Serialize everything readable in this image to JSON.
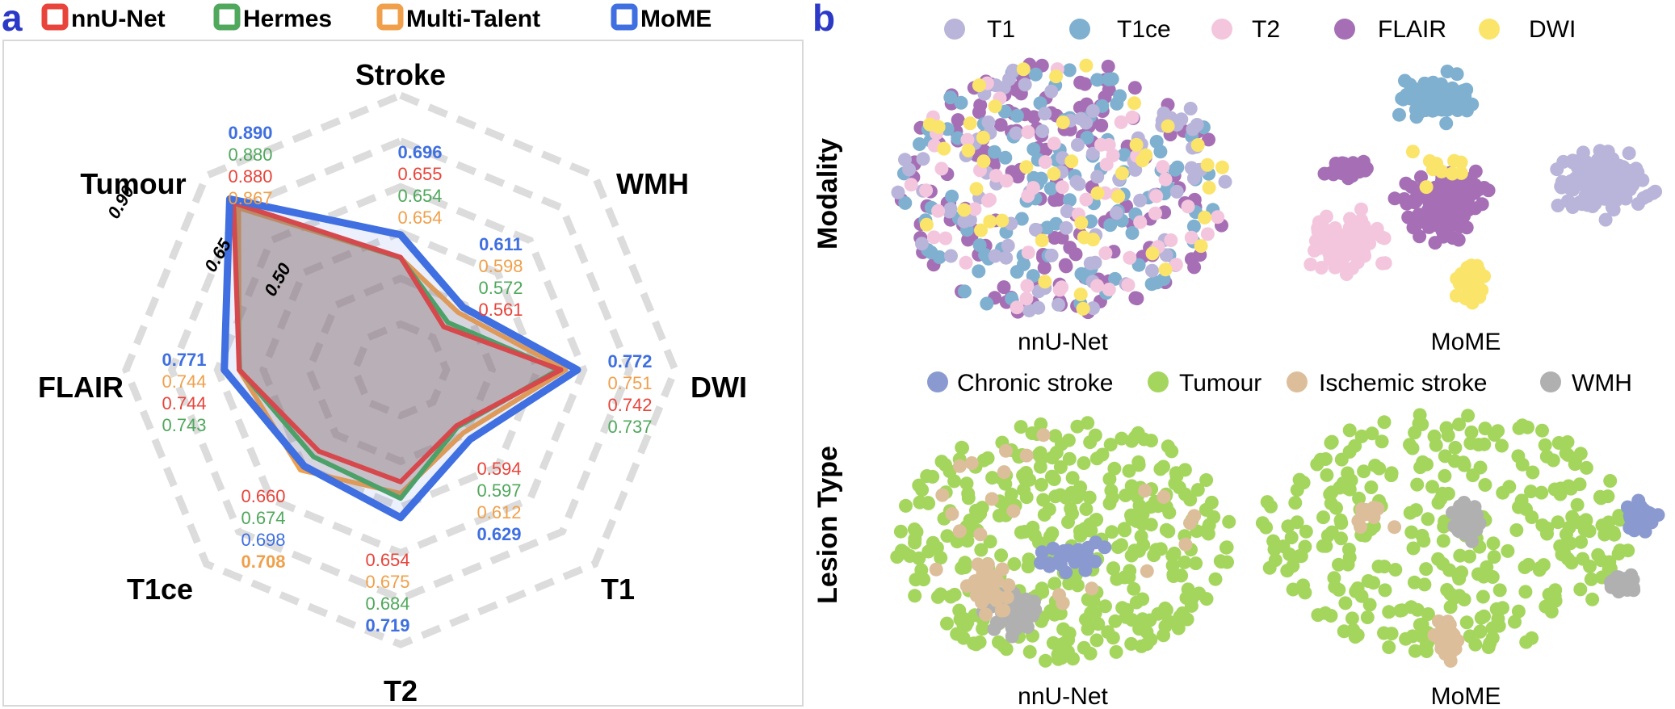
{
  "panels": {
    "a": "a",
    "b": "b"
  },
  "colors": {
    "nnunet": "#e8443b",
    "hermes": "#4fa85c",
    "multitalent": "#f0a04b",
    "mome": "#3f6fe0",
    "panel_label": "#2c39c7",
    "grid": "#dcdcdc",
    "T1": "#b9b4d9",
    "T1ce": "#7fb0d0",
    "T2": "#f3c6de",
    "FLAIR": "#a66fb5",
    "DWI": "#fbe46a",
    "chronic": "#8a9ad0",
    "tumour": "#a4d65e",
    "ischemic": "#dcbf9a",
    "wmh": "#b0b0b0"
  },
  "chart_data": [
    {
      "type": "radar",
      "panel": "a",
      "legend": [
        "nnU-Net",
        "Hermes",
        "Multi-Talent",
        "MoME"
      ],
      "legend_position": "top",
      "axes": [
        "Stroke",
        "WMH",
        "DWI",
        "T1",
        "T2",
        "T1ce",
        "FLAIR",
        "Tumour"
      ],
      "radial_ticks": [
        "0.50",
        "0.65",
        "0.90"
      ],
      "radial_tick_values": [
        0.5,
        0.65,
        0.9
      ],
      "series": [
        {
          "name": "nnU-Net",
          "values": [
            0.655,
            0.561,
            0.742,
            0.594,
            0.654,
            0.66,
            0.744,
            0.88
          ]
        },
        {
          "name": "Hermes",
          "values": [
            0.654,
            0.572,
            0.737,
            0.597,
            0.684,
            0.674,
            0.743,
            0.88
          ]
        },
        {
          "name": "Multi-Talent",
          "values": [
            0.654,
            0.598,
            0.751,
            0.612,
            0.675,
            0.708,
            0.744,
            0.867
          ]
        },
        {
          "name": "MoME",
          "values": [
            0.696,
            0.611,
            0.772,
            0.629,
            0.719,
            0.698,
            0.771,
            0.89
          ]
        }
      ],
      "value_labels": {
        "Stroke": [
          "0.696",
          "0.655",
          "0.654",
          "0.654"
        ],
        "WMH": [
          "0.611",
          "0.598",
          "0.572",
          "0.561"
        ],
        "DWI": [
          "0.772",
          "0.751",
          "0.742",
          "0.737"
        ],
        "T1": [
          "0.594",
          "0.597",
          "0.612",
          "0.629"
        ],
        "T2": [
          "0.654",
          "0.675",
          "0.684",
          "0.719"
        ],
        "T1ce": [
          "0.660",
          "0.674",
          "0.698",
          "0.708"
        ],
        "FLAIR": [
          "0.771",
          "0.744",
          "0.744",
          "0.743"
        ],
        "Tumour": [
          "0.890",
          "0.880",
          "0.880",
          "0.867"
        ]
      }
    },
    {
      "type": "scatter",
      "panel": "b",
      "row_labels": [
        "Modality",
        "Lesion Type"
      ],
      "column_labels": [
        "nnU-Net",
        "MoME"
      ],
      "modality_legend": [
        "T1",
        "T1ce",
        "T2",
        "FLAIR",
        "DWI"
      ],
      "lesion_legend": [
        "Chronic stroke",
        "Tumour",
        "Ischemic stroke",
        "WMH"
      ]
    }
  ]
}
